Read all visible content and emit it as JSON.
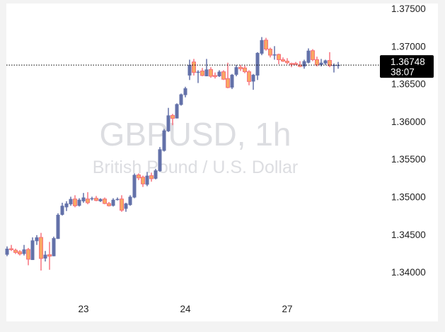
{
  "chart_data": {
    "type": "candlestick",
    "title": "GBPUSD, 1h",
    "subtitle": "British Pound / U.S. Dollar",
    "ylim": [
      1.338,
      1.376
    ],
    "y_ticks": [
      "1.34000",
      "1.34500",
      "1.35000",
      "1.35500",
      "1.36000",
      "1.36500",
      "1.37000",
      "1.37500"
    ],
    "x_labels": [
      {
        "index": 18,
        "label": "23"
      },
      {
        "index": 42,
        "label": "24"
      },
      {
        "index": 66,
        "label": "27"
      }
    ],
    "last_price": "1.36748",
    "countdown": "38:07",
    "grid": false,
    "colors": {
      "up": "#6371a9",
      "down_body": "#f9a862",
      "down_border": "#f7727f",
      "last_price_bg": "#000000"
    },
    "candles_ohlc": [
      [
        1.3423,
        1.3434,
        1.3421,
        1.3431
      ],
      [
        1.3431,
        1.3436,
        1.3428,
        1.343
      ],
      [
        1.3429,
        1.3431,
        1.3424,
        1.3426
      ],
      [
        1.3427,
        1.3429,
        1.3422,
        1.3424
      ],
      [
        1.3424,
        1.3436,
        1.3422,
        1.343
      ],
      [
        1.343,
        1.3432,
        1.3409,
        1.3417
      ],
      [
        1.3416,
        1.3446,
        1.3416,
        1.3442
      ],
      [
        1.3441,
        1.3449,
        1.3436,
        1.3446
      ],
      [
        1.3446,
        1.3452,
        1.3402,
        1.3418
      ],
      [
        1.3418,
        1.3428,
        1.3414,
        1.3423
      ],
      [
        1.3423,
        1.344,
        1.3403,
        1.3421
      ],
      [
        1.3421,
        1.3447,
        1.3421,
        1.3445
      ],
      [
        1.3444,
        1.3478,
        1.3444,
        1.3476
      ],
      [
        1.3476,
        1.3492,
        1.3475,
        1.3488
      ],
      [
        1.3486,
        1.3494,
        1.3481,
        1.3491
      ],
      [
        1.349,
        1.35,
        1.3488,
        1.3497
      ],
      [
        1.3497,
        1.3502,
        1.3486,
        1.3488
      ],
      [
        1.3488,
        1.3498,
        1.3487,
        1.3496
      ],
      [
        1.3494,
        1.3505,
        1.3492,
        1.3499
      ],
      [
        1.3497,
        1.3506,
        1.349,
        1.3492
      ],
      [
        1.3497,
        1.35,
        1.3495,
        1.3498
      ],
      [
        1.3498,
        1.3501,
        1.3494,
        1.3495
      ],
      [
        1.3494,
        1.3498,
        1.3493,
        1.3497
      ],
      [
        1.3497,
        1.3499,
        1.349,
        1.3491
      ],
      [
        1.3491,
        1.3493,
        1.3487,
        1.3488
      ],
      [
        1.3488,
        1.3498,
        1.3487,
        1.3496
      ],
      [
        1.3496,
        1.3499,
        1.3495,
        1.3497
      ],
      [
        1.3497,
        1.3502,
        1.348,
        1.3482
      ],
      [
        1.3484,
        1.3492,
        1.348,
        1.3491
      ],
      [
        1.3489,
        1.3502,
        1.3488,
        1.35
      ],
      [
        1.3499,
        1.3531,
        1.3498,
        1.3529
      ],
      [
        1.3529,
        1.3531,
        1.3522,
        1.3525
      ],
      [
        1.3526,
        1.3528,
        1.3513,
        1.3517
      ],
      [
        1.3516,
        1.3533,
        1.3514,
        1.3528
      ],
      [
        1.3528,
        1.3532,
        1.352,
        1.3524
      ],
      [
        1.3524,
        1.3537,
        1.3523,
        1.3535
      ],
      [
        1.3534,
        1.3566,
        1.3533,
        1.3563
      ],
      [
        1.3561,
        1.359,
        1.356,
        1.3588
      ],
      [
        1.3587,
        1.3618,
        1.3586,
        1.3608
      ],
      [
        1.3608,
        1.361,
        1.3595,
        1.3604
      ],
      [
        1.3604,
        1.3624,
        1.3604,
        1.3623
      ],
      [
        1.3622,
        1.3637,
        1.3621,
        1.3636
      ],
      [
        1.3635,
        1.3646,
        1.3632,
        1.3644
      ],
      [
        1.3661,
        1.3682,
        1.3655,
        1.3675
      ],
      [
        1.3679,
        1.3683,
        1.3661,
        1.3665
      ],
      [
        1.3665,
        1.3668,
        1.3651,
        1.3666
      ],
      [
        1.3667,
        1.3671,
        1.366,
        1.3661
      ],
      [
        1.366,
        1.3683,
        1.366,
        1.3669
      ],
      [
        1.3669,
        1.3672,
        1.3658,
        1.366
      ],
      [
        1.3661,
        1.3665,
        1.3657,
        1.366
      ],
      [
        1.366,
        1.3668,
        1.3659,
        1.3666
      ],
      [
        1.3666,
        1.3668,
        1.3655,
        1.3656
      ],
      [
        1.3657,
        1.3678,
        1.3644,
        1.3645
      ],
      [
        1.3645,
        1.3663,
        1.3643,
        1.3662
      ],
      [
        1.3662,
        1.3675,
        1.366,
        1.3672
      ],
      [
        1.3672,
        1.3675,
        1.3667,
        1.367
      ],
      [
        1.3671,
        1.3674,
        1.3664,
        1.3666
      ],
      [
        1.3666,
        1.3668,
        1.3648,
        1.3653
      ],
      [
        1.3653,
        1.3663,
        1.3642,
        1.3662
      ],
      [
        1.3661,
        1.3692,
        1.3655,
        1.3691
      ],
      [
        1.369,
        1.3712,
        1.3688,
        1.3708
      ],
      [
        1.3708,
        1.3711,
        1.3694,
        1.3696
      ],
      [
        1.3696,
        1.3698,
        1.3685,
        1.3688
      ],
      [
        1.3688,
        1.37,
        1.3682,
        1.3689
      ],
      [
        1.3689,
        1.369,
        1.3676,
        1.3682
      ],
      [
        1.3682,
        1.3685,
        1.3679,
        1.368
      ],
      [
        1.368,
        1.3684,
        1.3676,
        1.3678
      ],
      [
        1.3677,
        1.3678,
        1.3672,
        1.3676
      ],
      [
        1.3677,
        1.3679,
        1.3675,
        1.3676
      ],
      [
        1.3675,
        1.368,
        1.3672,
        1.3673
      ],
      [
        1.3673,
        1.3682,
        1.367,
        1.368
      ],
      [
        1.3678,
        1.3697,
        1.3677,
        1.3694
      ],
      [
        1.3694,
        1.3696,
        1.368,
        1.3682
      ],
      [
        1.3682,
        1.3686,
        1.3673,
        1.3675
      ],
      [
        1.3675,
        1.3683,
        1.3673,
        1.3678
      ],
      [
        1.3677,
        1.3682,
        1.3675,
        1.3681
      ],
      [
        1.3681,
        1.3692,
        1.3672,
        1.3674
      ],
      [
        1.3674,
        1.3677,
        1.3665,
        1.3675
      ],
      [
        1.3674,
        1.3679,
        1.367,
        1.3675
      ]
    ]
  }
}
